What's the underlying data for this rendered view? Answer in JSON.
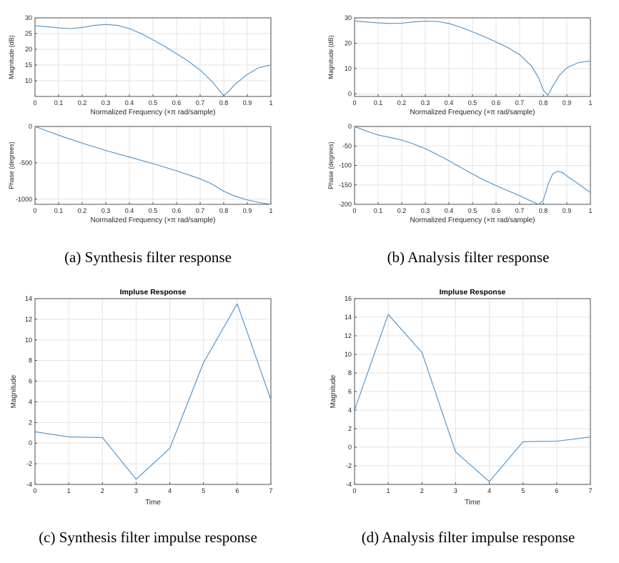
{
  "chart_data": [
    {
      "type": "line",
      "panel": "a",
      "xlabel": "Normalized Frequency  (×π rad/sample)",
      "ylabel": "Magnitude (dB)",
      "xlim": [
        0,
        1
      ],
      "ylim": [
        5,
        30
      ],
      "xticks": [
        "0",
        "0.1",
        "0.2",
        "0.3",
        "0.4",
        "0.5",
        "0.6",
        "0.7",
        "0.8",
        "0.9",
        "1"
      ],
      "yticks": [
        "10",
        "15",
        "20",
        "25",
        "30"
      ],
      "grid": true,
      "x": [
        0,
        0.05,
        0.1,
        0.15,
        0.2,
        0.25,
        0.3,
        0.35,
        0.4,
        0.45,
        0.5,
        0.55,
        0.6,
        0.65,
        0.7,
        0.75,
        0.78,
        0.8,
        0.82,
        0.85,
        0.9,
        0.95,
        1.0
      ],
      "y": [
        27.5,
        27.2,
        26.8,
        26.6,
        26.9,
        27.6,
        27.9,
        27.6,
        26.6,
        25.0,
        23.0,
        20.9,
        18.6,
        16.2,
        13.4,
        9.8,
        7.0,
        5.3,
        6.6,
        9.0,
        12.0,
        14.2,
        15.0
      ]
    },
    {
      "type": "line",
      "panel": "a",
      "xlabel": "Normalized Frequency  (×π rad/sample)",
      "ylabel": "Phase (degrees)",
      "xlim": [
        0,
        1
      ],
      "ylim": [
        -1070,
        0
      ],
      "xticks": [
        "0",
        "0.1",
        "0.2",
        "0.3",
        "0.4",
        "0.5",
        "0.6",
        "0.7",
        "0.8",
        "0.9",
        "1"
      ],
      "yticks": [
        "-1000",
        "-500",
        "0"
      ],
      "grid": true,
      "x": [
        0,
        0.05,
        0.1,
        0.2,
        0.3,
        0.4,
        0.5,
        0.6,
        0.7,
        0.75,
        0.8,
        0.85,
        0.9,
        0.95,
        1.0
      ],
      "y": [
        0,
        -60,
        -120,
        -230,
        -330,
        -420,
        -510,
        -610,
        -720,
        -790,
        -890,
        -960,
        -1010,
        -1045,
        -1070
      ]
    },
    {
      "type": "line",
      "panel": "b",
      "xlabel": "Normalized Frequency  (×π rad/sample)",
      "ylabel": "Magnitude (dB)",
      "xlim": [
        0,
        1
      ],
      "ylim": [
        -1,
        30
      ],
      "xticks": [
        "0",
        "0.1",
        "0.2",
        "0.3",
        "0.4",
        "0.5",
        "0.6",
        "0.7",
        "0.8",
        "0.9",
        "1"
      ],
      "yticks": [
        "0",
        "10",
        "20",
        "30"
      ],
      "grid": true,
      "x": [
        0,
        0.05,
        0.1,
        0.15,
        0.2,
        0.25,
        0.3,
        0.35,
        0.4,
        0.45,
        0.5,
        0.55,
        0.6,
        0.65,
        0.7,
        0.75,
        0.78,
        0.8,
        0.82,
        0.84,
        0.87,
        0.9,
        0.95,
        1.0
      ],
      "y": [
        28.7,
        28.4,
        28.0,
        27.8,
        27.9,
        28.4,
        28.7,
        28.6,
        27.8,
        26.3,
        24.5,
        22.6,
        20.5,
        18.3,
        15.5,
        11.0,
        6.5,
        1.5,
        -0.5,
        3.0,
        7.5,
        10.3,
        12.4,
        13.0
      ]
    },
    {
      "type": "line",
      "panel": "b",
      "xlabel": "Normalized Frequency  (×π rad/sample)",
      "ylabel": "Phase (degrees)",
      "xlim": [
        0,
        1
      ],
      "ylim": [
        -200,
        0
      ],
      "xticks": [
        "0",
        "0.1",
        "0.2",
        "0.3",
        "0.4",
        "0.5",
        "0.6",
        "0.7",
        "0.8",
        "0.9",
        "1"
      ],
      "yticks": [
        "-200",
        "-150",
        "-100",
        "-50",
        "0"
      ],
      "grid": true,
      "x": [
        0,
        0.05,
        0.1,
        0.15,
        0.2,
        0.25,
        0.3,
        0.35,
        0.4,
        0.45,
        0.5,
        0.55,
        0.6,
        0.65,
        0.7,
        0.75,
        0.78,
        0.8,
        0.82,
        0.84,
        0.86,
        0.88,
        0.9,
        0.95,
        1.0
      ],
      "y": [
        0,
        -12,
        -22,
        -28,
        -35,
        -45,
        -57,
        -72,
        -88,
        -105,
        -122,
        -138,
        -152,
        -165,
        -178,
        -192,
        -200,
        -190,
        -150,
        -122,
        -115,
        -118,
        -127,
        -148,
        -170
      ]
    },
    {
      "type": "line",
      "panel": "c",
      "title": "Impluse Response",
      "xlabel": "Time",
      "ylabel": "Magnitude",
      "xlim": [
        0,
        7
      ],
      "ylim": [
        -4,
        14
      ],
      "xticks": [
        "0",
        "1",
        "2",
        "3",
        "4",
        "5",
        "6",
        "7"
      ],
      "yticks": [
        "-4",
        "-2",
        "0",
        "2",
        "4",
        "6",
        "8",
        "10",
        "12",
        "14"
      ],
      "grid": true,
      "x": [
        0,
        1,
        2,
        3,
        4,
        5,
        6,
        7
      ],
      "y": [
        1.1,
        0.6,
        0.55,
        -3.5,
        -0.5,
        7.8,
        13.5,
        4.2
      ]
    },
    {
      "type": "line",
      "panel": "d",
      "title": "Impluse Response",
      "xlabel": "Time",
      "ylabel": "Magnitude",
      "xlim": [
        0,
        7
      ],
      "ylim": [
        -4,
        16
      ],
      "xticks": [
        "0",
        "1",
        "2",
        "3",
        "4",
        "5",
        "6",
        "7"
      ],
      "yticks": [
        "-4",
        "-2",
        "0",
        "2",
        "4",
        "6",
        "8",
        "10",
        "12",
        "14",
        "16"
      ],
      "grid": true,
      "x": [
        0,
        1,
        2,
        3,
        4,
        5,
        6,
        7
      ],
      "y": [
        4.0,
        14.3,
        10.2,
        -0.5,
        -3.7,
        0.6,
        0.65,
        1.1
      ]
    }
  ],
  "captions": {
    "a": "(a) Synthesis filter response",
    "b": "(b) Analysis filter response",
    "c": "(c) Synthesis filter impulse response",
    "d": "(d) Analysis filter impulse response"
  },
  "colors": {
    "series": "#4a90c8",
    "grid": "#e3e3e3",
    "axes": "#262626"
  }
}
